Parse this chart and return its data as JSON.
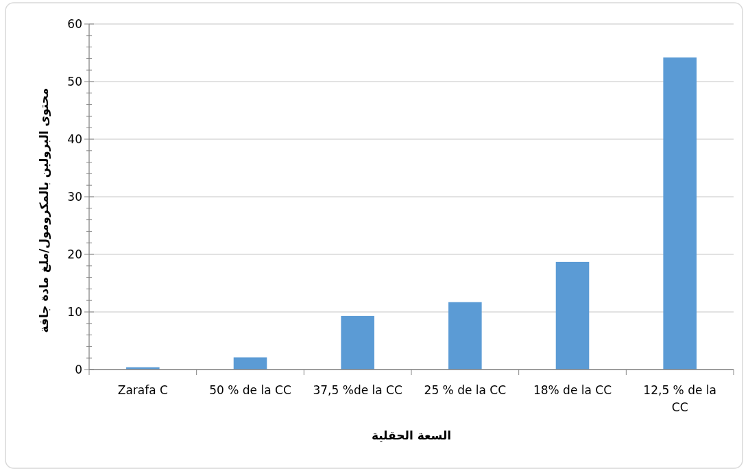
{
  "chart_data": {
    "type": "bar",
    "categories": [
      "Zarafa C",
      "50 % de la CC",
      "37,5 %de la CC",
      "25 % de la CC",
      "18% de la CC",
      "12,5 % de la CC"
    ],
    "values": [
      0.4,
      2.1,
      9.3,
      11.7,
      18.7,
      54.2
    ],
    "color": "#5b9bd5",
    "xlabel": "السعة الحقلية",
    "ylabel": "محتوى البرولين بالمكرومول/ملغ مادة جافة",
    "ylim": [
      0,
      60
    ],
    "yticks": [
      0,
      {
        "value": 2,
        "label": null
      },
      {
        "value": 4,
        "label": null
      },
      {
        "value": 6,
        "label": null
      },
      {
        "value": 8,
        "label": null
      },
      10,
      {
        "value": 12,
        "label": null
      },
      {
        "value": 14,
        "label": null
      },
      {
        "value": 16,
        "label": null
      },
      {
        "value": 18,
        "label": null
      },
      20,
      {
        "value": 22,
        "label": null
      },
      {
        "value": 24,
        "label": null
      },
      {
        "value": 26,
        "label": null
      },
      {
        "value": 28,
        "label": null
      },
      30,
      {
        "value": 32,
        "label": null
      },
      {
        "value": 34,
        "label": null
      },
      {
        "value": 36,
        "label": null
      },
      {
        "value": 38,
        "label": null
      },
      40,
      {
        "value": 42,
        "label": null
      },
      {
        "value": 44,
        "label": null
      },
      {
        "value": 46,
        "label": null
      },
      {
        "value": 48,
        "label": null
      },
      50,
      {
        "value": 52,
        "label": null
      },
      {
        "value": 54,
        "label": null
      },
      {
        "value": 56,
        "label": null
      },
      {
        "value": 58,
        "label": null
      },
      60
    ],
    "grid": "y"
  }
}
